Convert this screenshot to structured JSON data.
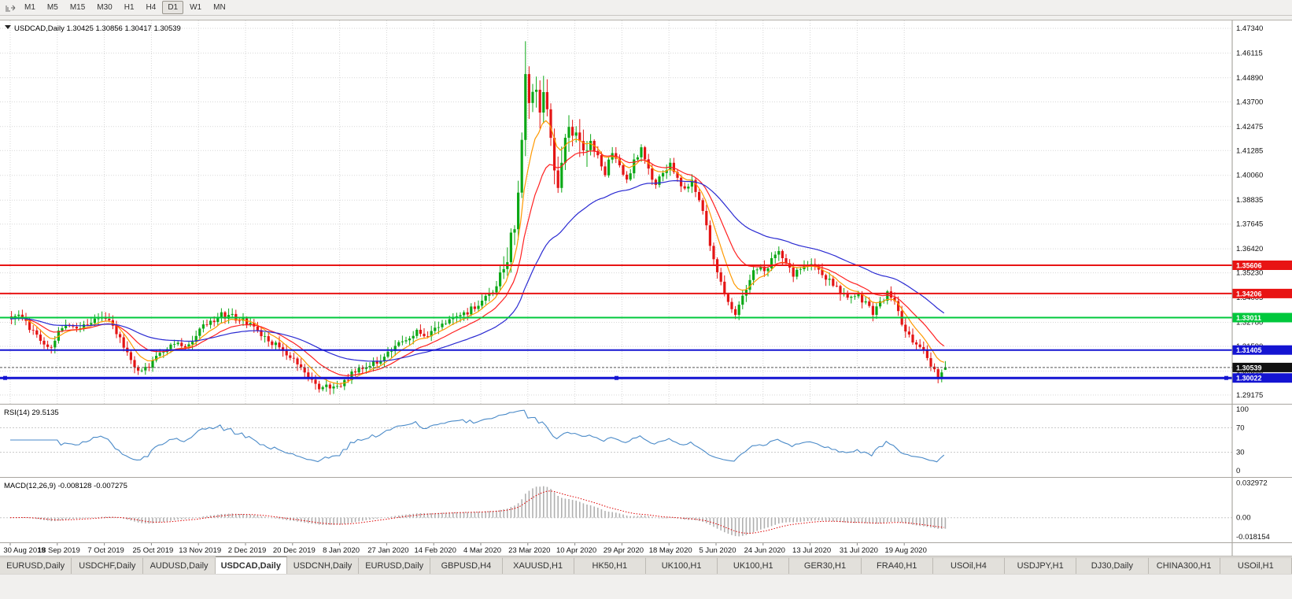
{
  "toolbar": {
    "timeframes": [
      "M1",
      "M5",
      "M15",
      "M30",
      "H1",
      "H4",
      "D1",
      "W1",
      "MN"
    ],
    "active": "D1"
  },
  "chart": {
    "title": "USDCAD,Daily 1.30425 1.30856 1.30417 1.30539"
  },
  "price_axis": {
    "labels": [
      "1.47340",
      "1.46115",
      "1.44890",
      "1.43700",
      "1.42475",
      "1.41285",
      "1.40060",
      "1.38835",
      "1.37645",
      "1.36420",
      "1.35230",
      "1.34005",
      "1.32780",
      "1.31590",
      "1.30365",
      "1.29175"
    ]
  },
  "date_axis": {
    "labels": [
      "30 Aug 2019",
      "18 Sep 2019",
      "7 Oct 2019",
      "25 Oct 2019",
      "13 Nov 2019",
      "2 Dec 2019",
      "20 Dec 2019",
      "8 Jan 2020",
      "27 Jan 2020",
      "14 Feb 2020",
      "4 Mar 2020",
      "23 Mar 2020",
      "10 Apr 2020",
      "29 Apr 2020",
      "18 May 2020",
      "5 Jun 2020",
      "24 Jun 2020",
      "13 Jul 2020",
      "31 Jul 2020",
      "19 Aug 2020"
    ]
  },
  "price_tags": [
    {
      "label": "1.35606",
      "value": 1.35606,
      "color": "#e81414"
    },
    {
      "label": "1.34206",
      "value": 1.34206,
      "color": "#e81414"
    },
    {
      "label": "1.33011",
      "value": 1.33011,
      "color": "#00c83c"
    },
    {
      "label": "1.31405",
      "value": 1.31405,
      "color": "#1414d2"
    },
    {
      "label": "1.30539",
      "value": 1.30539,
      "color": "#111111"
    },
    {
      "label": "1.30022",
      "value": 1.30022,
      "color": "#1414d2"
    }
  ],
  "rsi": {
    "label": "RSI(14) 29.5135",
    "period": 14,
    "value": "29.5135",
    "axis_labels": [
      "100",
      "70",
      "30",
      "0"
    ],
    "axis_values": [
      100,
      70,
      30,
      0
    ],
    "levels": [
      70,
      30
    ],
    "color": "#4a8ac8"
  },
  "macd": {
    "label": "MACD(12,26,9) -0.008128 -0.007275",
    "fast": 12,
    "slow": 26,
    "signal": 9,
    "values": [
      "-0.008128",
      "-0.007275"
    ],
    "axis_labels": [
      "0.032972",
      "0.00",
      "-0.018154"
    ],
    "axis_values": [
      0.032972,
      0,
      -0.018154
    ]
  },
  "tabs": {
    "active_index": 3,
    "items": [
      "EURUSD,Daily",
      "USDCHF,Daily",
      "AUDUSD,Daily",
      "USDCAD,Daily",
      "USDCNH,Daily",
      "EURUSD,Daily",
      "GBPUSD,H4",
      "XAUUSD,H1",
      "HK50,H1",
      "UK100,H1",
      "UK100,H1",
      "GER30,H1",
      "FRA40,H1",
      "USOil,H4",
      "USDJPY,H1",
      "DJ30,Daily",
      "CHINA300,H1",
      "USOil,H1"
    ]
  },
  "chart_data": {
    "type": "candlestick",
    "symbol": "USDCAD",
    "timeframe": "Daily",
    "x_range": [
      "30 Aug 2019",
      "4 Sep 2020"
    ],
    "y_range": [
      1.29175,
      1.4734
    ],
    "last_candle": {
      "open": 1.30425,
      "high": 1.30856,
      "low": 1.30417,
      "close": 1.30539
    },
    "current_price": 1.30539,
    "hlines": [
      {
        "value": 1.35606,
        "color": "#e81414",
        "width": 2,
        "selected": false
      },
      {
        "value": 1.34206,
        "color": "#e81414",
        "width": 2,
        "selected": false
      },
      {
        "value": 1.33011,
        "color": "#00c83c",
        "width": 2,
        "selected": false
      },
      {
        "value": 1.31405,
        "color": "#1414d2",
        "width": 2,
        "selected": false
      },
      {
        "value": 1.30022,
        "color": "#1414d2",
        "width": 3,
        "selected": true
      }
    ],
    "candle_count": 259,
    "x_tick_step": 13,
    "seed": 20200904,
    "noise": 0.0032,
    "high_vol_range": [
      135,
      160
    ],
    "high_vol_factor": 2.6,
    "spike": {
      "index": 142,
      "high": 1.467
    },
    "ma": [
      {
        "period": 8,
        "color": "#ff9900"
      },
      {
        "period": 17,
        "color": "#ff2020"
      },
      {
        "period": 45,
        "color": "#2a2ad2"
      }
    ],
    "anchors": [
      [
        0,
        1.3295
      ],
      [
        2,
        1.333
      ],
      [
        5,
        1.3245
      ],
      [
        8,
        1.318
      ],
      [
        11,
        1.3165
      ],
      [
        13,
        1.3235
      ],
      [
        16,
        1.327
      ],
      [
        19,
        1.3245
      ],
      [
        22,
        1.329
      ],
      [
        26,
        1.33
      ],
      [
        29,
        1.3235
      ],
      [
        32,
        1.313
      ],
      [
        34,
        1.3045
      ],
      [
        37,
        1.306
      ],
      [
        39,
        1.3075
      ],
      [
        42,
        1.314
      ],
      [
        46,
        1.317
      ],
      [
        49,
        1.3155
      ],
      [
        52,
        1.3245
      ],
      [
        55,
        1.3285
      ],
      [
        58,
        1.3315
      ],
      [
        62,
        1.33
      ],
      [
        65,
        1.328
      ],
      [
        68,
        1.323
      ],
      [
        71,
        1.3175
      ],
      [
        74,
        1.3165
      ],
      [
        78,
        1.309
      ],
      [
        81,
        1.302
      ],
      [
        84,
        1.2965
      ],
      [
        88,
        1.2955
      ],
      [
        91,
        1.2975
      ],
      [
        94,
        1.302
      ],
      [
        98,
        1.3055
      ],
      [
        101,
        1.3085
      ],
      [
        104,
        1.313
      ],
      [
        108,
        1.319
      ],
      [
        112,
        1.323
      ],
      [
        115,
        1.3215
      ],
      [
        117,
        1.325
      ],
      [
        120,
        1.3275
      ],
      [
        124,
        1.33
      ],
      [
        127,
        1.3345
      ],
      [
        130,
        1.3385
      ],
      [
        133,
        1.343
      ],
      [
        135,
        1.351
      ],
      [
        137,
        1.36
      ],
      [
        139,
        1.378
      ],
      [
        140,
        1.395
      ],
      [
        141,
        1.42
      ],
      [
        142,
        1.447
      ],
      [
        143,
        1.438
      ],
      [
        144,
        1.445
      ],
      [
        145,
        1.439
      ],
      [
        146,
        1.43
      ],
      [
        147,
        1.443
      ],
      [
        148,
        1.433
      ],
      [
        149,
        1.419
      ],
      [
        150,
        1.406
      ],
      [
        151,
        1.3985
      ],
      [
        152,
        1.409
      ],
      [
        153,
        1.42
      ],
      [
        154,
        1.428
      ],
      [
        155,
        1.417
      ],
      [
        156,
        1.419
      ],
      [
        158,
        1.409
      ],
      [
        160,
        1.416
      ],
      [
        162,
        1.409
      ],
      [
        164,
        1.402
      ],
      [
        166,
        1.412
      ],
      [
        168,
        1.406
      ],
      [
        170,
        1.398
      ],
      [
        172,
        1.408
      ],
      [
        174,
        1.413
      ],
      [
        176,
        1.404
      ],
      [
        178,
        1.396
      ],
      [
        180,
        1.401
      ],
      [
        182,
        1.407
      ],
      [
        184,
        1.399
      ],
      [
        186,
        1.393
      ],
      [
        188,
        1.398
      ],
      [
        190,
        1.388
      ],
      [
        192,
        1.376
      ],
      [
        194,
        1.358
      ],
      [
        195,
        1.352
      ],
      [
        197,
        1.342
      ],
      [
        199,
        1.334
      ],
      [
        200,
        1.332
      ],
      [
        202,
        1.34
      ],
      [
        204,
        1.349
      ],
      [
        206,
        1.3555
      ],
      [
        208,
        1.353
      ],
      [
        210,
        1.359
      ],
      [
        212,
        1.362
      ],
      [
        214,
        1.356
      ],
      [
        216,
        1.351
      ],
      [
        218,
        1.3545
      ],
      [
        221,
        1.358
      ],
      [
        223,
        1.354
      ],
      [
        225,
        1.35
      ],
      [
        227,
        1.347
      ],
      [
        229,
        1.342
      ],
      [
        231,
        1.339
      ],
      [
        234,
        1.341
      ],
      [
        236,
        1.337
      ],
      [
        238,
        1.333
      ],
      [
        240,
        1.337
      ],
      [
        242,
        1.342
      ],
      [
        244,
        1.337
      ],
      [
        246,
        1.328
      ],
      [
        247,
        1.3235
      ],
      [
        249,
        1.319
      ],
      [
        251,
        1.315
      ],
      [
        253,
        1.31
      ],
      [
        255,
        1.304
      ],
      [
        256,
        1.2998
      ],
      [
        257,
        1.3025
      ],
      [
        258,
        1.30539
      ]
    ]
  }
}
